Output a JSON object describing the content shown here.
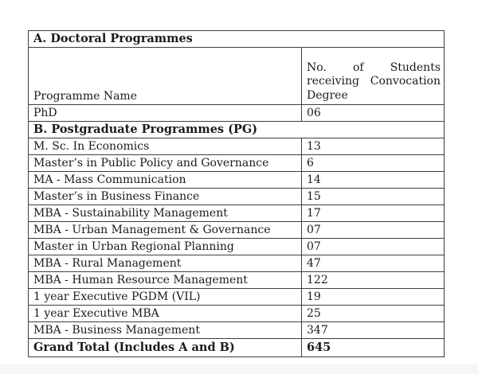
{
  "table": {
    "border_color": "#3e3e3e",
    "text_color": "#1b1b1b",
    "section_a": {
      "label": "A. Doctoral Programmes"
    },
    "column_header": {
      "name": "Programme Name",
      "count": "No. of Students receiving Convocation Degree"
    },
    "section_b": {
      "label": "B. Postgraduate Programmes (PG)"
    },
    "rows": [
      {
        "name": "PhD",
        "value": "06"
      },
      {
        "name": "M. Sc. In Economics",
        "value": "13"
      },
      {
        "name": "Master’s in Public Policy and Governance",
        "value": "6"
      },
      {
        "name": "MA - Mass Communication",
        "value": "14"
      },
      {
        "name": "Master’s in Business Finance",
        "value": "15"
      },
      {
        "name": "MBA - Sustainability Management",
        "value": "17"
      },
      {
        "name": "MBA - Urban Management & Governance",
        "value": "07"
      },
      {
        "name": "Master in Urban Regional Planning",
        "value": "07"
      },
      {
        "name": "MBA - Rural Management",
        "value": "47"
      },
      {
        "name": "MBA - Human Resource Management",
        "value": "122"
      },
      {
        "name": "1 year Executive PGDM (VIL)",
        "value": "19"
      },
      {
        "name": "1 year Executive MBA",
        "value": "25"
      },
      {
        "name": "MBA - Business Management",
        "value": "347"
      }
    ],
    "grand_total": {
      "name": "Grand Total (Includes A and B)",
      "value": "645"
    }
  }
}
